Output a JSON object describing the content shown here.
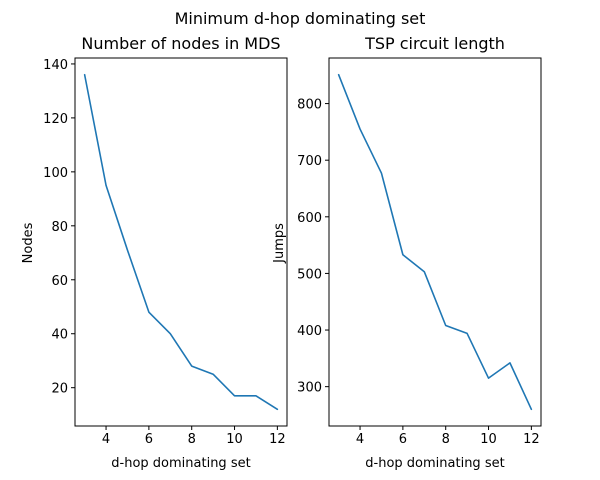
{
  "figure_title": "Minimum d-hop dominating set",
  "chart_data": [
    {
      "type": "line",
      "title": "Number of nodes in MDS",
      "xlabel": "d-hop dominating set",
      "ylabel": "Nodes",
      "xlim": [
        2.55,
        12.45
      ],
      "ylim": [
        5.8,
        142.2
      ],
      "xticks": [
        4,
        6,
        8,
        10,
        12
      ],
      "yticks": [
        20,
        40,
        60,
        80,
        100,
        120,
        140
      ],
      "grid": false,
      "series": [
        {
          "color": "#1f77b4",
          "x": [
            3,
            4,
            5,
            6,
            7,
            8,
            9,
            10,
            11,
            12
          ],
          "y": [
            136,
            95,
            71,
            48,
            40,
            28,
            25,
            17,
            17,
            12
          ]
        }
      ]
    },
    {
      "type": "line",
      "title": "TSP circuit length",
      "xlabel": "d-hop dominating set",
      "ylabel": "Jumps",
      "xlim": [
        2.55,
        12.45
      ],
      "ylim": [
        230.5,
        880.5
      ],
      "xticks": [
        4,
        6,
        8,
        10,
        12
      ],
      "yticks": [
        300,
        400,
        500,
        600,
        700,
        800
      ],
      "grid": false,
      "series": [
        {
          "color": "#1f77b4",
          "x": [
            3,
            4,
            5,
            6,
            7,
            8,
            9,
            10,
            11,
            12
          ],
          "y": [
            851,
            755,
            677,
            533,
            503,
            408,
            394,
            315,
            342,
            260
          ]
        }
      ]
    }
  ]
}
